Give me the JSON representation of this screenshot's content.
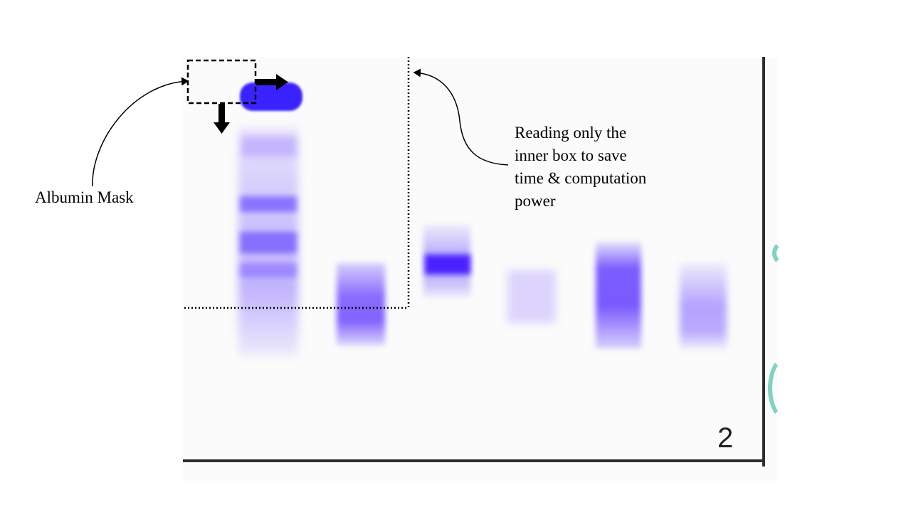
{
  "annotations": {
    "albumin_mask": "Albumin Mask",
    "reading_lines": [
      "Reading only the",
      "inner box to save",
      "time & computation",
      "power"
    ]
  },
  "gel": {
    "number": "2",
    "band_color": "#5a2dff",
    "border_color": "#2d2d2d"
  }
}
